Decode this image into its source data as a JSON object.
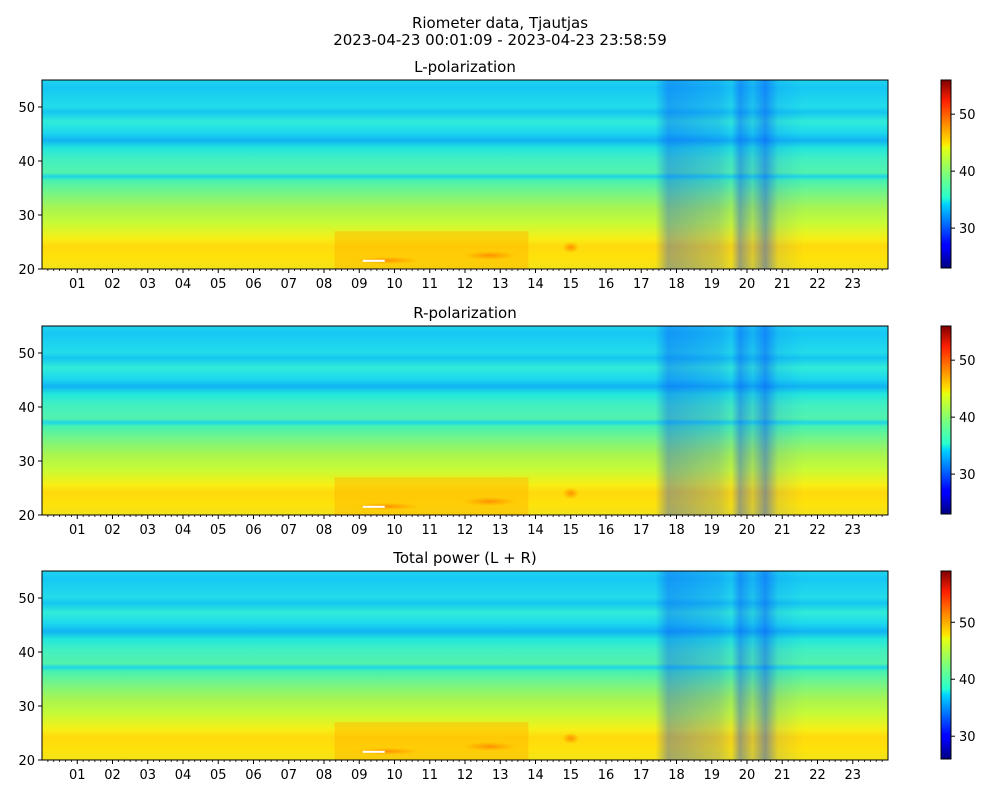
{
  "figure": {
    "title_line1": "Riometer data, Tjautjas",
    "title_line2": "2023-04-23 00:01:09 - 2023-04-23 23:58:59"
  },
  "chart_data": [
    {
      "type": "heatmap",
      "title": "L-polarization",
      "x_ticks": [
        "01",
        "02",
        "03",
        "04",
        "05",
        "06",
        "07",
        "08",
        "09",
        "10",
        "11",
        "12",
        "13",
        "14",
        "15",
        "16",
        "17",
        "18",
        "19",
        "20",
        "21",
        "22",
        "23"
      ],
      "xlim": [
        0,
        24
      ],
      "ylim": [
        20,
        55
      ],
      "y_ticks": [
        20,
        30,
        40,
        50
      ],
      "colorbar": {
        "range": [
          23,
          56
        ],
        "ticks": [
          30,
          40,
          50
        ],
        "colormap": "jet"
      }
    },
    {
      "type": "heatmap",
      "title": "R-polarization",
      "x_ticks": [
        "01",
        "02",
        "03",
        "04",
        "05",
        "06",
        "07",
        "08",
        "09",
        "10",
        "11",
        "12",
        "13",
        "14",
        "15",
        "16",
        "17",
        "18",
        "19",
        "20",
        "21",
        "22",
        "23"
      ],
      "xlim": [
        0,
        24
      ],
      "ylim": [
        20,
        55
      ],
      "y_ticks": [
        20,
        30,
        40,
        50
      ],
      "colorbar": {
        "range": [
          23,
          56
        ],
        "ticks": [
          30,
          40,
          50
        ],
        "colormap": "jet"
      }
    },
    {
      "type": "heatmap",
      "title": "Total power (L + R)",
      "x_ticks": [
        "01",
        "02",
        "03",
        "04",
        "05",
        "06",
        "07",
        "08",
        "09",
        "10",
        "11",
        "12",
        "13",
        "14",
        "15",
        "16",
        "17",
        "18",
        "19",
        "20",
        "21",
        "22",
        "23"
      ],
      "xlim": [
        0,
        24
      ],
      "ylim": [
        20,
        55
      ],
      "y_ticks": [
        20,
        30,
        40,
        50
      ],
      "colorbar": {
        "range": [
          26,
          59
        ],
        "ticks": [
          30,
          40,
          50
        ],
        "colormap": "jet"
      }
    }
  ]
}
